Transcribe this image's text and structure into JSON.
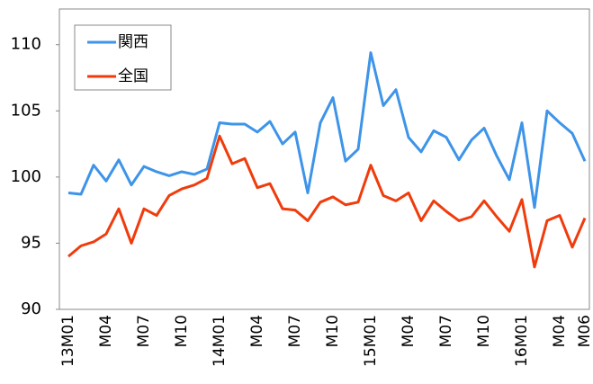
{
  "chart_data": {
    "type": "line",
    "categories": [
      "13M01",
      null,
      null,
      "M04",
      null,
      null,
      "M07",
      null,
      null,
      "M10",
      null,
      null,
      "14M01",
      null,
      null,
      "M04",
      null,
      null,
      "M07",
      null,
      null,
      "M10",
      null,
      null,
      "15M01",
      null,
      null,
      "M04",
      null,
      null,
      "M07",
      null,
      null,
      "M10",
      null,
      null,
      "16M01",
      null,
      null,
      "M04",
      null,
      "M06"
    ],
    "series": [
      {
        "name": "関西",
        "color": "#3d94e8",
        "values": [
          98.8,
          98.7,
          100.9,
          99.7,
          101.3,
          99.4,
          100.8,
          100.4,
          100.1,
          100.4,
          100.2,
          100.6,
          104.1,
          104.0,
          104.0,
          103.4,
          104.2,
          102.5,
          103.4,
          98.8,
          104.1,
          106.0,
          101.2,
          102.1,
          109.4,
          105.4,
          106.6,
          103.0,
          101.9,
          103.5,
          103.0,
          101.3,
          102.8,
          103.7,
          101.6,
          99.8,
          104.1,
          97.7,
          105.0,
          104.1,
          103.3,
          101.2
        ]
      },
      {
        "name": "全国",
        "color": "#f03c0c",
        "values": [
          94.0,
          94.8,
          95.1,
          95.7,
          97.6,
          95.0,
          97.6,
          97.1,
          98.6,
          99.1,
          99.4,
          99.9,
          103.1,
          101.0,
          101.4,
          99.2,
          99.5,
          97.6,
          97.5,
          96.7,
          98.1,
          98.5,
          97.9,
          98.1,
          100.9,
          98.6,
          98.2,
          98.8,
          96.7,
          98.2,
          97.4,
          96.7,
          97.0,
          98.2,
          97.0,
          95.9,
          98.3,
          93.2,
          96.7,
          97.1,
          94.7,
          96.9
        ]
      }
    ],
    "ylim": [
      90,
      112.7
    ],
    "yticks": [
      90,
      95,
      100,
      105,
      110
    ],
    "legend": "upper-left"
  }
}
